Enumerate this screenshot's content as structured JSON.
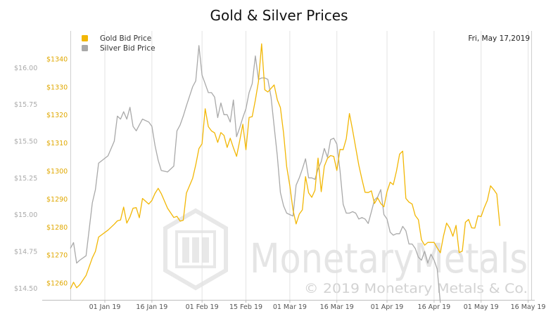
{
  "chart_data": {
    "type": "line",
    "title": "Gold & Silver Prices",
    "date_label": "Fri, May 17,2019",
    "legend_position": "top-left",
    "grid": "vertical",
    "x_axis": {
      "range": [
        "2018-12-21",
        "2019-05-17"
      ],
      "ticks": [
        {
          "date": "2019-01-01",
          "label": "01 Jan 19"
        },
        {
          "date": "2019-01-16",
          "label": "16 Jan 19"
        },
        {
          "date": "2019-02-01",
          "label": "01 Feb 19"
        },
        {
          "date": "2019-02-15",
          "label": "15 Feb 19"
        },
        {
          "date": "2019-03-01",
          "label": "01 Mar 19"
        },
        {
          "date": "2019-03-16",
          "label": "16 Mar 19"
        },
        {
          "date": "2019-04-01",
          "label": "01 Apr 19"
        },
        {
          "date": "2019-04-16",
          "label": "16 Apr 19"
        },
        {
          "date": "2019-05-01",
          "label": "01 May 19"
        },
        {
          "date": "2019-05-16",
          "label": "16 May 19"
        }
      ]
    },
    "y_left": {
      "range": [
        14.42,
        16.25
      ],
      "ticks": [
        {
          "value": 14.5,
          "label": "$14.50"
        },
        {
          "value": 14.75,
          "label": "$14.75"
        },
        {
          "value": 15.0,
          "label": "$15.00"
        },
        {
          "value": 15.25,
          "label": "$15.25"
        },
        {
          "value": 15.5,
          "label": "$15.50"
        },
        {
          "value": 15.75,
          "label": "$15.75"
        },
        {
          "value": 16.0,
          "label": "$16.00"
        }
      ]
    },
    "y_right": {
      "range": [
        1254,
        1350
      ],
      "ticks": [
        {
          "value": 1260,
          "label": "$1260"
        },
        {
          "value": 1270,
          "label": "$1270"
        },
        {
          "value": 1280,
          "label": "$1280"
        },
        {
          "value": 1290,
          "label": "$1290"
        },
        {
          "value": 1300,
          "label": "$1300"
        },
        {
          "value": 1310,
          "label": "$1310"
        },
        {
          "value": 1320,
          "label": "$1320"
        },
        {
          "value": 1330,
          "label": "$1330"
        },
        {
          "value": 1340,
          "label": "$1340"
        }
      ]
    },
    "series": [
      {
        "name": "Gold Bid Price",
        "axis": "right",
        "color": "#f2b705",
        "points": [
          [
            "2018-12-21",
            1257.9
          ],
          [
            "2018-12-22",
            1260.3
          ],
          [
            "2018-12-23",
            1258.3
          ],
          [
            "2018-12-24",
            1259.4
          ],
          [
            "2018-12-26",
            1262.7
          ],
          [
            "2018-12-28",
            1269.0
          ],
          [
            "2018-12-29",
            1271.3
          ],
          [
            "2018-12-30",
            1276.4
          ],
          [
            "2019-01-02",
            1278.9
          ],
          [
            "2019-01-04",
            1281.0
          ],
          [
            "2019-01-05",
            1282.2
          ],
          [
            "2019-01-06",
            1282.5
          ],
          [
            "2019-01-07",
            1287.1
          ],
          [
            "2019-01-08",
            1281.4
          ],
          [
            "2019-01-09",
            1283.6
          ],
          [
            "2019-01-10",
            1286.7
          ],
          [
            "2019-01-11",
            1286.9
          ],
          [
            "2019-01-12",
            1283.3
          ],
          [
            "2019-01-13",
            1290.2
          ],
          [
            "2019-01-15",
            1288.2
          ],
          [
            "2019-01-16",
            1289.5
          ],
          [
            "2019-01-17",
            1292.0
          ],
          [
            "2019-01-18",
            1293.8
          ],
          [
            "2019-01-19",
            1291.9
          ],
          [
            "2019-01-21",
            1286.7
          ],
          [
            "2019-01-23",
            1283.4
          ],
          [
            "2019-01-24",
            1283.8
          ],
          [
            "2019-01-25",
            1282.1
          ],
          [
            "2019-01-26",
            1282.4
          ],
          [
            "2019-01-27",
            1292.1
          ],
          [
            "2019-01-29",
            1297.4
          ],
          [
            "2019-01-30",
            1302.2
          ],
          [
            "2019-01-31",
            1308.0
          ],
          [
            "2019-02-01",
            1309.7
          ],
          [
            "2019-02-02",
            1322.2
          ],
          [
            "2019-02-03",
            1315.8
          ],
          [
            "2019-02-04",
            1314.3
          ],
          [
            "2019-02-05",
            1313.6
          ],
          [
            "2019-02-06",
            1310.2
          ],
          [
            "2019-02-07",
            1313.7
          ],
          [
            "2019-02-08",
            1312.7
          ],
          [
            "2019-02-09",
            1308.4
          ],
          [
            "2019-02-10",
            1311.7
          ],
          [
            "2019-02-11",
            1308.3
          ],
          [
            "2019-02-12",
            1305.2
          ],
          [
            "2019-02-13",
            1310.7
          ],
          [
            "2019-02-14",
            1316.7
          ],
          [
            "2019-02-15",
            1307.6
          ],
          [
            "2019-02-16",
            1319.1
          ],
          [
            "2019-02-17",
            1319.4
          ],
          [
            "2019-02-18",
            1325.3
          ],
          [
            "2019-02-19",
            1331.9
          ],
          [
            "2019-02-20",
            1345.4
          ],
          [
            "2019-02-21",
            1329.0
          ],
          [
            "2019-02-22",
            1328.2
          ],
          [
            "2019-02-23",
            1329.5
          ],
          [
            "2019-02-24",
            1330.7
          ],
          [
            "2019-02-25",
            1325.4
          ],
          [
            "2019-02-26",
            1322.6
          ],
          [
            "2019-02-27",
            1313.5
          ],
          [
            "2019-02-28",
            1301.6
          ],
          [
            "2019-03-01",
            1294.7
          ],
          [
            "2019-03-02",
            1286.1
          ],
          [
            "2019-03-03",
            1281.1
          ],
          [
            "2019-03-04",
            1284.6
          ],
          [
            "2019-03-05",
            1286.1
          ],
          [
            "2019-03-06",
            1298.0
          ],
          [
            "2019-03-07",
            1292.2
          ],
          [
            "2019-03-08",
            1290.6
          ],
          [
            "2019-03-09",
            1293.1
          ],
          [
            "2019-03-10",
            1304.6
          ],
          [
            "2019-03-11",
            1292.6
          ],
          [
            "2019-03-12",
            1301.7
          ],
          [
            "2019-03-13",
            1304.5
          ],
          [
            "2019-03-14",
            1305.5
          ],
          [
            "2019-03-15",
            1305.2
          ],
          [
            "2019-03-16",
            1300.2
          ],
          [
            "2019-03-17",
            1307.7
          ],
          [
            "2019-03-18",
            1307.6
          ],
          [
            "2019-03-19",
            1311.5
          ],
          [
            "2019-03-20",
            1320.5
          ],
          [
            "2019-03-21",
            1314.7
          ],
          [
            "2019-03-23",
            1302.1
          ],
          [
            "2019-03-24",
            1297.0
          ],
          [
            "2019-03-25",
            1292.4
          ],
          [
            "2019-03-26",
            1292.3
          ],
          [
            "2019-03-27",
            1292.9
          ],
          [
            "2019-03-28",
            1288.4
          ],
          [
            "2019-03-29",
            1290.4
          ],
          [
            "2019-03-30",
            1288.4
          ],
          [
            "2019-03-31",
            1287.2
          ],
          [
            "2019-04-01",
            1292.6
          ],
          [
            "2019-04-02",
            1296.0
          ],
          [
            "2019-04-03",
            1295.1
          ],
          [
            "2019-04-04",
            1299.9
          ],
          [
            "2019-04-05",
            1306.0
          ],
          [
            "2019-04-06",
            1307.1
          ],
          [
            "2019-04-07",
            1290.2
          ],
          [
            "2019-04-08",
            1288.9
          ],
          [
            "2019-04-09",
            1288.2
          ],
          [
            "2019-04-10",
            1284.1
          ],
          [
            "2019-04-11",
            1282.6
          ],
          [
            "2019-04-12",
            1275.4
          ],
          [
            "2019-04-13",
            1273.5
          ],
          [
            "2019-04-14",
            1274.5
          ],
          [
            "2019-04-16",
            1274.5
          ],
          [
            "2019-04-17",
            1272.6
          ],
          [
            "2019-04-18",
            1270.8
          ],
          [
            "2019-04-19",
            1276.7
          ],
          [
            "2019-04-20",
            1281.4
          ],
          [
            "2019-04-21",
            1279.7
          ],
          [
            "2019-04-22",
            1276.7
          ],
          [
            "2019-04-23",
            1280.6
          ],
          [
            "2019-04-24",
            1270.9
          ],
          [
            "2019-04-25",
            1271.4
          ],
          [
            "2019-04-26",
            1281.7
          ],
          [
            "2019-04-27",
            1282.7
          ],
          [
            "2019-04-28",
            1279.7
          ],
          [
            "2019-04-29",
            1279.6
          ],
          [
            "2019-04-30",
            1284.0
          ],
          [
            "2019-05-01",
            1283.7
          ],
          [
            "2019-05-02",
            1286.9
          ],
          [
            "2019-05-03",
            1289.5
          ],
          [
            "2019-05-04",
            1294.7
          ],
          [
            "2019-05-05",
            1293.4
          ],
          [
            "2019-05-06",
            1291.8
          ],
          [
            "2019-05-07",
            1280.4
          ]
        ]
      },
      {
        "name": "Silver Bid Price",
        "axis": "left",
        "color": "#a9a9a9",
        "points": [
          [
            "2018-12-21",
            14.77
          ],
          [
            "2018-12-22",
            14.81
          ],
          [
            "2018-12-23",
            14.67
          ],
          [
            "2018-12-24",
            14.69
          ],
          [
            "2018-12-26",
            14.72
          ],
          [
            "2018-12-28",
            15.08
          ],
          [
            "2018-12-29",
            15.17
          ],
          [
            "2018-12-30",
            15.35
          ],
          [
            "2019-01-02",
            15.4
          ],
          [
            "2019-01-04",
            15.5
          ],
          [
            "2019-01-05",
            15.67
          ],
          [
            "2019-01-06",
            15.65
          ],
          [
            "2019-01-07",
            15.7
          ],
          [
            "2019-01-08",
            15.65
          ],
          [
            "2019-01-09",
            15.73
          ],
          [
            "2019-01-10",
            15.6
          ],
          [
            "2019-01-11",
            15.57
          ],
          [
            "2019-01-12",
            15.61
          ],
          [
            "2019-01-13",
            15.65
          ],
          [
            "2019-01-15",
            15.63
          ],
          [
            "2019-01-16",
            15.6
          ],
          [
            "2019-01-17",
            15.47
          ],
          [
            "2019-01-18",
            15.37
          ],
          [
            "2019-01-19",
            15.3
          ],
          [
            "2019-01-21",
            15.29
          ],
          [
            "2019-01-23",
            15.33
          ],
          [
            "2019-01-24",
            15.57
          ],
          [
            "2019-01-25",
            15.61
          ],
          [
            "2019-01-26",
            15.67
          ],
          [
            "2019-01-27",
            15.74
          ],
          [
            "2019-01-29",
            15.87
          ],
          [
            "2019-01-30",
            15.91
          ],
          [
            "2019-01-31",
            16.15
          ],
          [
            "2019-02-01",
            15.95
          ],
          [
            "2019-02-02",
            15.89
          ],
          [
            "2019-02-03",
            15.83
          ],
          [
            "2019-02-04",
            15.83
          ],
          [
            "2019-02-05",
            15.8
          ],
          [
            "2019-02-06",
            15.66
          ],
          [
            "2019-02-07",
            15.76
          ],
          [
            "2019-02-08",
            15.68
          ],
          [
            "2019-02-09",
            15.68
          ],
          [
            "2019-02-10",
            15.63
          ],
          [
            "2019-02-11",
            15.78
          ],
          [
            "2019-02-12",
            15.53
          ],
          [
            "2019-02-13",
            15.59
          ],
          [
            "2019-02-14",
            15.66
          ],
          [
            "2019-02-15",
            15.72
          ],
          [
            "2019-02-16",
            15.83
          ],
          [
            "2019-02-17",
            15.89
          ],
          [
            "2019-02-18",
            16.08
          ],
          [
            "2019-02-19",
            15.92
          ],
          [
            "2019-02-20",
            15.93
          ],
          [
            "2019-02-21",
            15.93
          ],
          [
            "2019-02-22",
            15.92
          ],
          [
            "2019-02-23",
            15.8
          ],
          [
            "2019-02-24",
            15.6
          ],
          [
            "2019-02-25",
            15.4
          ],
          [
            "2019-02-26",
            15.15
          ],
          [
            "2019-02-27",
            15.06
          ],
          [
            "2019-02-28",
            15.01
          ],
          [
            "2019-03-01",
            15.0
          ],
          [
            "2019-03-02",
            14.99
          ],
          [
            "2019-03-03",
            15.2
          ],
          [
            "2019-03-04",
            15.25
          ],
          [
            "2019-03-05",
            15.31
          ],
          [
            "2019-03-06",
            15.38
          ],
          [
            "2019-03-07",
            15.25
          ],
          [
            "2019-03-08",
            15.25
          ],
          [
            "2019-03-09",
            15.24
          ],
          [
            "2019-03-10",
            15.31
          ],
          [
            "2019-03-11",
            15.36
          ],
          [
            "2019-03-12",
            15.45
          ],
          [
            "2019-03-13",
            15.39
          ],
          [
            "2019-03-14",
            15.51
          ],
          [
            "2019-03-15",
            15.52
          ],
          [
            "2019-03-16",
            15.48
          ],
          [
            "2019-03-17",
            15.3
          ],
          [
            "2019-03-18",
            15.07
          ],
          [
            "2019-03-19",
            15.01
          ],
          [
            "2019-03-20",
            15.01
          ],
          [
            "2019-03-21",
            15.02
          ],
          [
            "2019-03-22",
            15.01
          ],
          [
            "2019-03-23",
            14.97
          ],
          [
            "2019-03-24",
            14.98
          ],
          [
            "2019-03-25",
            14.97
          ],
          [
            "2019-03-26",
            14.94
          ],
          [
            "2019-03-27",
            15.02
          ],
          [
            "2019-03-28",
            15.1
          ],
          [
            "2019-03-29",
            15.12
          ],
          [
            "2019-03-30",
            15.17
          ],
          [
            "2019-03-31",
            15.0
          ],
          [
            "2019-04-01",
            14.97
          ],
          [
            "2019-04-02",
            14.88
          ],
          [
            "2019-04-03",
            14.86
          ],
          [
            "2019-04-04",
            14.87
          ],
          [
            "2019-04-05",
            14.87
          ],
          [
            "2019-04-06",
            14.92
          ],
          [
            "2019-04-07",
            14.89
          ],
          [
            "2019-04-08",
            14.8
          ],
          [
            "2019-04-09",
            14.8
          ],
          [
            "2019-04-10",
            14.77
          ],
          [
            "2019-04-11",
            14.71
          ],
          [
            "2019-04-12",
            14.69
          ],
          [
            "2019-04-13",
            14.75
          ],
          [
            "2019-04-14",
            14.67
          ],
          [
            "2019-04-15",
            14.73
          ],
          [
            "2019-04-16",
            14.69
          ],
          [
            "2019-04-17",
            14.63
          ],
          [
            "2019-04-18",
            14.4
          ]
        ]
      }
    ]
  },
  "watermark": {
    "brand_text": "MonetaryMetals",
    "copyright": "© 2019 Monetary Metals & Co."
  }
}
